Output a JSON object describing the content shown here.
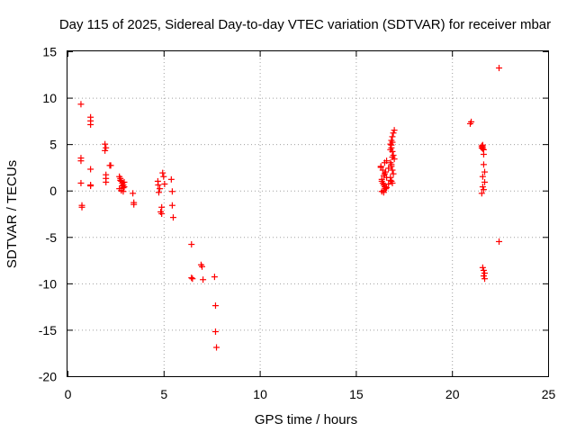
{
  "chart_data": {
    "type": "scatter",
    "title": "Day 115 of 2025, Sidereal Day-to-day VTEC variation (SDTVAR) for receiver mbar",
    "xlabel": "GPS time / hours",
    "ylabel": "SDTVAR / TECUs",
    "xlim": [
      0,
      25
    ],
    "ylim": [
      -20,
      15
    ],
    "xticks": [
      "0",
      "5",
      "10",
      "15",
      "20",
      "25"
    ],
    "yticks": [
      "15",
      "10",
      "5",
      "0",
      "-5",
      "-10",
      "-15",
      "-20"
    ],
    "grid": true,
    "marker": "+",
    "color": "#ff0000",
    "series": [
      {
        "name": "SDTVAR",
        "x": [
          0.7,
          0.7,
          0.7,
          0.7,
          0.75,
          0.75,
          1.2,
          1.2,
          1.2,
          1.2,
          1.2,
          1.2,
          1.95,
          1.95,
          2.0,
          2.0,
          2.0,
          2.0,
          2.2,
          2.25,
          2.7,
          2.75,
          2.8,
          2.85,
          2.9,
          2.95,
          2.7,
          2.8,
          2.9,
          2.95,
          2.75,
          2.85,
          2.9,
          3.4,
          3.45,
          3.45,
          4.7,
          4.72,
          4.8,
          4.85,
          4.9,
          4.95,
          5.0,
          5.05,
          4.75,
          4.9,
          5.4,
          5.45,
          5.45,
          5.5,
          6.45,
          6.45,
          6.5,
          6.95,
          7.0,
          7.05,
          7.65,
          7.7,
          7.7,
          7.75,
          16.3,
          16.4,
          16.5,
          16.6,
          16.35,
          16.45,
          16.55,
          16.35,
          16.45,
          16.5,
          16.4,
          16.3,
          16.5,
          16.6,
          16.35,
          16.45,
          16.55,
          16.7,
          16.45,
          16.6,
          16.7,
          16.8,
          16.8,
          16.85,
          16.9,
          16.95,
          17.0,
          16.85,
          16.9,
          16.95,
          17.0,
          16.8,
          16.85,
          16.9,
          16.95,
          16.8,
          16.85,
          16.9,
          16.9,
          16.85,
          16.8,
          16.9,
          16.85,
          20.95,
          21.0,
          21.55,
          21.55,
          21.6,
          21.6,
          21.6,
          21.65,
          21.65,
          21.65,
          21.7,
          21.6,
          21.7,
          21.6,
          21.65,
          21.55,
          21.6,
          21.65,
          21.7,
          21.65,
          21.7,
          22.45,
          22.45
        ],
        "y": [
          9.3,
          3.5,
          3.2,
          0.8,
          -1.6,
          -1.8,
          7.9,
          7.5,
          7.1,
          2.3,
          0.6,
          0.5,
          5.0,
          4.3,
          4.6,
          1.7,
          1.3,
          0.9,
          2.7,
          2.7,
          1.5,
          1.3,
          1.0,
          0.8,
          0.6,
          0.4,
          0.2,
          0.0,
          0.3,
          0.9,
          1.1,
          0.5,
          -0.1,
          -0.3,
          -1.3,
          -1.5,
          1.0,
          0.6,
          0.2,
          -2.3,
          -2.5,
          1.9,
          1.5,
          0.7,
          -0.2,
          -1.8,
          1.2,
          -0.1,
          -1.6,
          -2.9,
          -5.8,
          -9.4,
          -9.5,
          -8.0,
          -8.2,
          -9.6,
          -9.3,
          -12.4,
          -15.2,
          -16.9,
          2.6,
          2.2,
          1.8,
          1.4,
          1.0,
          0.6,
          0.2,
          -0.1,
          0.0,
          0.4,
          0.8,
          2.5,
          3.0,
          3.2,
          1.2,
          1.6,
          2.0,
          2.4,
          -0.2,
          0.3,
          0.7,
          1.1,
          5.0,
          5.4,
          5.8,
          6.2,
          6.5,
          4.6,
          4.2,
          3.8,
          3.4,
          3.0,
          2.6,
          2.2,
          1.8,
          1.4,
          1.0,
          0.8,
          5.2,
          4.9,
          4.4,
          3.6,
          2.8,
          7.2,
          7.4,
          4.8,
          4.6,
          4.5,
          4.7,
          4.9,
          4.4,
          3.9,
          2.8,
          2.0,
          1.5,
          0.9,
          0.4,
          0.1,
          -0.3,
          -8.3,
          -8.6,
          -8.9,
          -9.2,
          -9.5,
          13.2,
          -5.5
        ]
      }
    ]
  }
}
